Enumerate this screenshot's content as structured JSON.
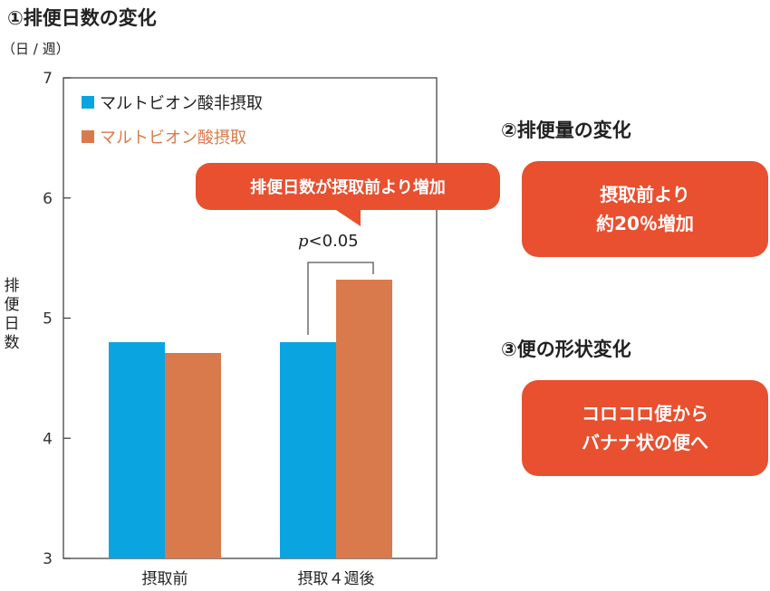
{
  "sections": {
    "s1_title": "①排便日数の変化",
    "s2_title": "②排便量の変化",
    "s3_title": "③便の形状変化"
  },
  "callouts": {
    "s2_line1": "摂取前より",
    "s2_line2": "約20％増加",
    "s3_line1": "コロコロ便から",
    "s3_line2": "バナナ状の便へ"
  },
  "annotation": {
    "bubble": "排便日数が摂取前より増加",
    "p_symbol": "p",
    "p_rest": "<0.05"
  },
  "colors": {
    "series_non_intake": "#0aa5e0",
    "series_intake": "#d97a4c",
    "callout_bg": "#e8502f"
  },
  "chart_data": {
    "type": "bar",
    "title": "①排便日数の変化",
    "unit": "（日 / 週）",
    "ylabel": "排便日数",
    "categories": [
      "摂取前",
      "摂取４週後"
    ],
    "ylim": [
      3,
      7
    ],
    "yticks": [
      3,
      4,
      5,
      6,
      7
    ],
    "series": [
      {
        "name": "マルトビオン酸非摂取",
        "values": [
          4.8,
          4.8
        ]
      },
      {
        "name": "マルトビオン酸摂取",
        "values": [
          4.71,
          5.32
        ]
      }
    ],
    "legend_position": "top-left"
  }
}
